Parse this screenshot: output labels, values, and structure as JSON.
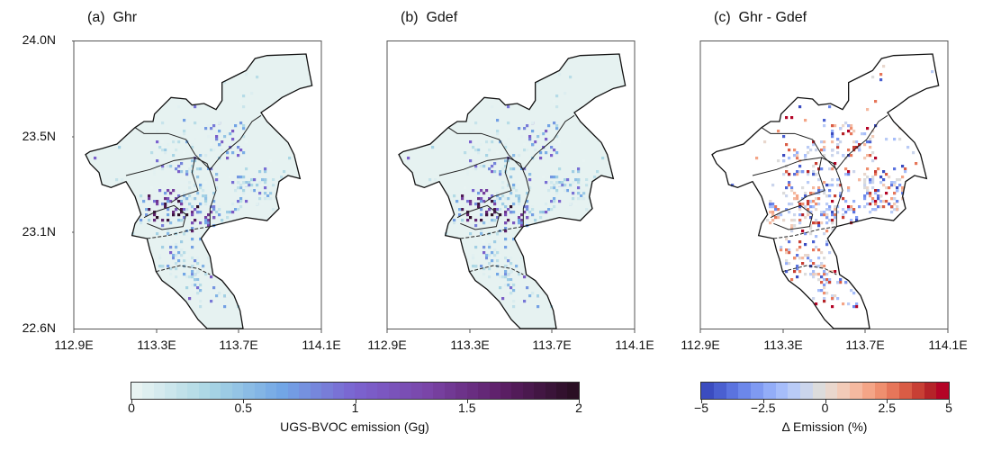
{
  "panels": [
    {
      "title": "(a)  Ghr",
      "mode": "sequential"
    },
    {
      "title": "(b)  Gdef",
      "mode": "sequential"
    },
    {
      "title": "(c)  Ghr - Gdef",
      "mode": "diverging"
    }
  ],
  "axes": {
    "x_ticks": [
      "112.9E",
      "113.3E",
      "113.7E",
      "114.1E"
    ],
    "y_ticks": [
      "24.0N",
      "23.5N",
      "23.1N",
      "22.6N"
    ]
  },
  "colorbars": {
    "emission": {
      "title": "UGS-BVOC emission (Gg)",
      "ticks": [
        "0",
        "0.5",
        "1",
        "1.5",
        "2"
      ],
      "range": [
        0,
        2
      ],
      "colors": [
        "#e8f3f2",
        "#a9d6e4",
        "#72a6e6",
        "#7b63d0",
        "#7a45a8",
        "#5e1f68",
        "#2a0f24"
      ]
    },
    "difference": {
      "title": "Δ Emission (%)",
      "ticks": [
        "−5",
        "−2.5",
        "0",
        "2.5",
        "5"
      ],
      "range": [
        -5,
        5
      ],
      "colors": [
        "#3b4cc0",
        "#4a5fd0",
        "#5b73df",
        "#6c87ea",
        "#7f9af2",
        "#93adf8",
        "#a6bdfa",
        "#b9cbf6",
        "#cbd5ec",
        "#dcdcdc",
        "#e9d7cd",
        "#f2cbb8",
        "#f5b9a0",
        "#f4a587",
        "#ef8f6f",
        "#e6765a",
        "#d95c45",
        "#c83f34",
        "#b52328",
        "#b40426"
      ]
    }
  }
}
